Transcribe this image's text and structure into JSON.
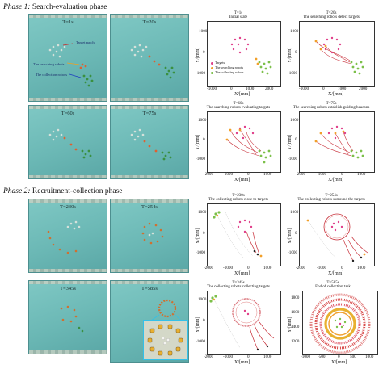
{
  "phases": [
    {
      "prefix": "Phase 1:",
      "title": "Search-evaluation phase"
    },
    {
      "prefix": "Phase 2:",
      "title": "Recruitment-collection phase"
    }
  ],
  "photos": [
    {
      "time": "T=1s",
      "labels": [
        "Target patch",
        "The searching robots",
        "The collection robots"
      ]
    },
    {
      "time": "T=20s"
    },
    {
      "time": "T=60s"
    },
    {
      "time": "T=75s"
    },
    {
      "time": "T=230s"
    },
    {
      "time": "T=254s"
    },
    {
      "time": "T=345s"
    },
    {
      "time": "T=585s"
    }
  ],
  "plots": [
    {
      "time": "T=1s",
      "caption": "Initial state",
      "legend": [
        "Targets",
        "The searching robots",
        "The collecting robots"
      ]
    },
    {
      "time": "T=20s",
      "caption": "The searching robots detect targets"
    },
    {
      "time": "T=60s",
      "caption": "The searching robots evaluating targets"
    },
    {
      "time": "T=75s",
      "caption": "The searching robots establish guiding beacons"
    },
    {
      "time": "T=230s",
      "caption": "The collecting robots close to targets"
    },
    {
      "time": "T=254s",
      "caption": "The collecting robots surround the targets"
    },
    {
      "time": "T=345s",
      "caption": "The collecting robots collecting targets"
    },
    {
      "time": "T=585s",
      "caption": "End of collection task"
    }
  ],
  "axes": {
    "xlabel": "X/[mm]",
    "ylabel": "Y/[mm]",
    "xticks_a": [
      "-1000",
      "0",
      "1000",
      "2000"
    ],
    "yticks_a": [
      "1000",
      "0",
      "-1000"
    ],
    "xticks_b": [
      "-2000",
      "-1000",
      "0",
      "1000"
    ],
    "yticks_b": [
      "1000",
      "0",
      "-1000"
    ],
    "xticks_c": [
      "-2000",
      "-1000",
      "0",
      "1000"
    ],
    "yticks_c": [
      "1000",
      "0",
      "-1000"
    ],
    "xticks_d": [
      "-1000",
      "-500",
      "0",
      "500",
      "1000"
    ],
    "yticks_d": [
      "1800",
      "1600",
      "1400",
      "1200"
    ]
  },
  "colors": {
    "target": "#e0408a",
    "searching": "#f2a02a",
    "collecting": "#7cc04a",
    "trail": "#c8303a",
    "zoom_border": "#35c0e8"
  }
}
